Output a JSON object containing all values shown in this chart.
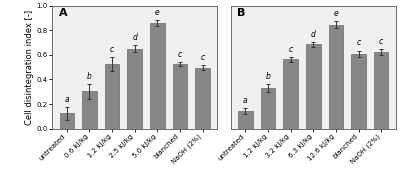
{
  "panel_A": {
    "label": "A",
    "categories": [
      "untreated",
      "0.6 kJ/kg",
      "1.2 kJ/kg",
      "2.5 kJ/kg",
      "5.0 kJ/kg",
      "blanched",
      "NaOH (2%)"
    ],
    "values": [
      0.125,
      0.305,
      0.525,
      0.65,
      0.855,
      0.525,
      0.495
    ],
    "errors": [
      0.05,
      0.06,
      0.055,
      0.03,
      0.025,
      0.018,
      0.022
    ],
    "letters": [
      "a",
      "b",
      "c",
      "d",
      "e",
      "c",
      "c"
    ]
  },
  "panel_B": {
    "label": "B",
    "categories": [
      "untreated",
      "1.2 kJ/kg",
      "3.2 kJ/kg",
      "6.3 kJ/kg",
      "12.6 kJ/kg",
      "blanched",
      "NaOH (2%)"
    ],
    "values": [
      0.145,
      0.33,
      0.565,
      0.685,
      0.845,
      0.61,
      0.62
    ],
    "errors": [
      0.025,
      0.03,
      0.02,
      0.018,
      0.03,
      0.025,
      0.025
    ],
    "letters": [
      "a",
      "b",
      "c",
      "d",
      "e",
      "c",
      "c"
    ]
  },
  "bar_color": "#878787",
  "bar_edge_color": "#555555",
  "ylabel": "Cell disintegration index [-]",
  "ylim": [
    0.0,
    1.0
  ],
  "yticks": [
    0.0,
    0.2,
    0.4,
    0.6,
    0.8,
    1.0
  ],
  "plot_bg_color": "#f0f0f0",
  "fig_bg_color": "#ffffff",
  "letter_fontsize": 5.5,
  "tick_fontsize": 5.0,
  "ylabel_fontsize": 6.0,
  "panel_label_fontsize": 8
}
